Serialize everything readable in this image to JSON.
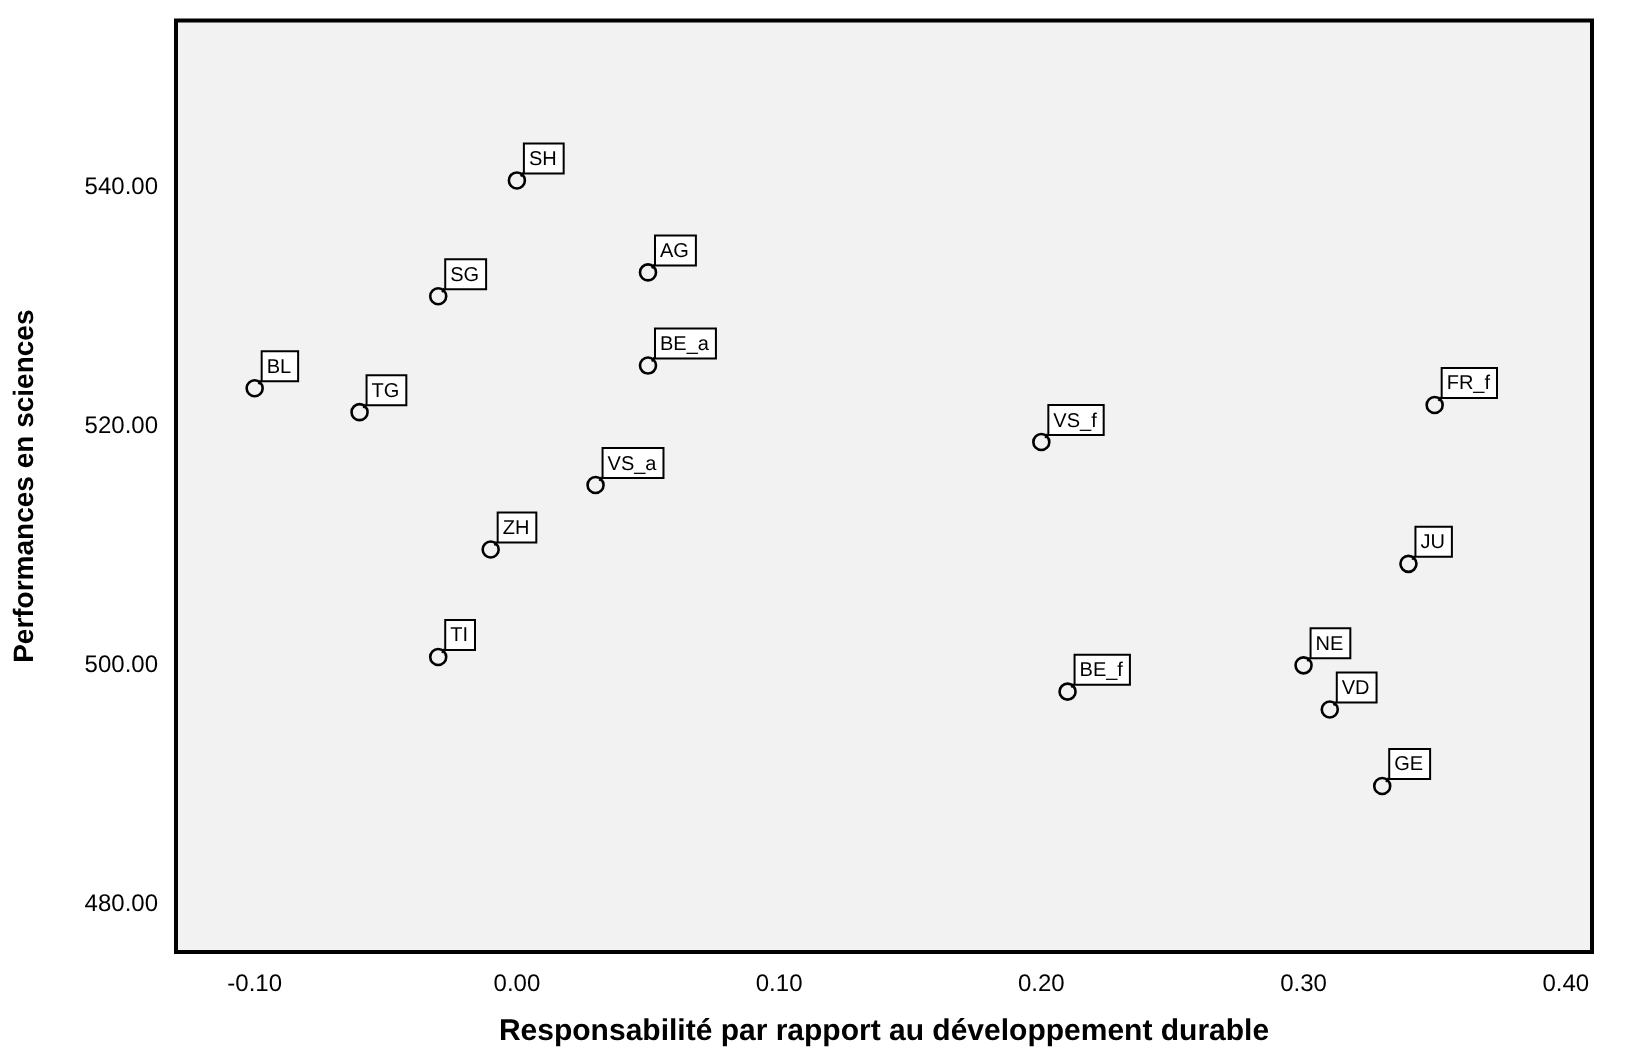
{
  "chart_data": {
    "type": "scatter",
    "xlabel": "Responsabilité par rapport au développement durable",
    "ylabel": "Performances en sciences",
    "xlim": [
      -0.13,
      0.41
    ],
    "ylim": [
      476,
      554
    ],
    "xticks": [
      {
        "value": -0.1,
        "label": "-0.10"
      },
      {
        "value": 0,
        "label": "0.00"
      },
      {
        "value": 0.1,
        "label": "0.10"
      },
      {
        "value": 0.2,
        "label": "0.20"
      },
      {
        "value": 0.3,
        "label": "0.30"
      },
      {
        "value": 0.4,
        "label": "0.40"
      }
    ],
    "yticks": [
      {
        "value": 480,
        "label": "480.00"
      },
      {
        "value": 500,
        "label": "500.00"
      },
      {
        "value": 520,
        "label": "520.00"
      },
      {
        "value": 540,
        "label": "540.00"
      }
    ],
    "grid": false,
    "legend": false,
    "marker": "circle",
    "series": [
      {
        "color": "#000000",
        "x": [
          0,
          -0.03,
          0.05,
          0.05,
          -0.1,
          -0.06,
          0.03,
          -0.01,
          -0.03,
          0.2,
          0.35,
          0.34,
          0.3,
          0.31,
          0.33,
          0.21
        ],
        "values": [
          540.6,
          530.9,
          532.9,
          525.1,
          523.2,
          521.2,
          515.1,
          509.7,
          500.7,
          518.7,
          521.8,
          508.5,
          500,
          496.3,
          489.9,
          497.8
        ]
      }
    ],
    "annotations": [
      {
        "text": "SH",
        "x": 0,
        "y": 540.6
      },
      {
        "text": "SG",
        "x": -0.03,
        "y": 530.9
      },
      {
        "text": "AG",
        "x": 0.05,
        "y": 532.9
      },
      {
        "text": "BE_a",
        "x": 0.05,
        "y": 525.1
      },
      {
        "text": "BL",
        "x": -0.1,
        "y": 523.2
      },
      {
        "text": "TG",
        "x": -0.06,
        "y": 521.2
      },
      {
        "text": "VS_a",
        "x": 0.03,
        "y": 515.1
      },
      {
        "text": "ZH",
        "x": -0.01,
        "y": 509.7
      },
      {
        "text": "TI",
        "x": -0.03,
        "y": 500.7
      },
      {
        "text": "VS_f",
        "x": 0.2,
        "y": 518.7
      },
      {
        "text": "FR_f",
        "x": 0.35,
        "y": 521.8
      },
      {
        "text": "JU",
        "x": 0.34,
        "y": 508.5
      },
      {
        "text": "NE",
        "x": 0.3,
        "y": 500
      },
      {
        "text": "VD",
        "x": 0.31,
        "y": 496.3
      },
      {
        "text": "GE",
        "x": 0.33,
        "y": 489.9
      },
      {
        "text": "BE_f",
        "x": 0.21,
        "y": 497.8
      }
    ]
  }
}
